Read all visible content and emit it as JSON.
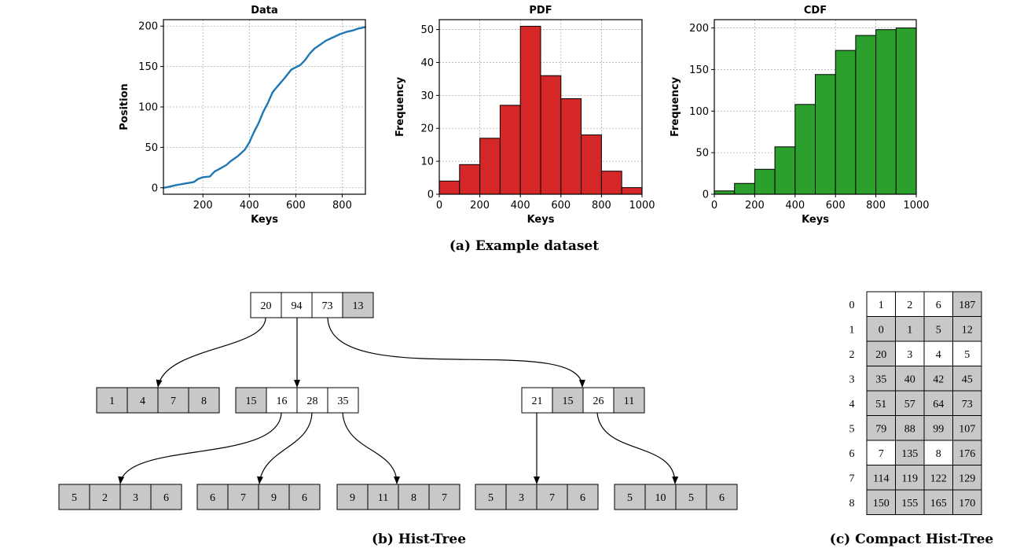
{
  "colors": {
    "line": "#1f77b4",
    "pdf_bar": "#d62728",
    "cdf_bar": "#2ca02c",
    "cell_shaded": "#c8c8c8",
    "cell_plain": "#ffffff"
  },
  "chart_data": [
    {
      "type": "line",
      "title": "Data",
      "xlabel": "Keys",
      "ylabel": "Position",
      "xlim": [
        30,
        900
      ],
      "ylim": [
        -8,
        208
      ],
      "xticks": [
        200,
        400,
        600,
        800
      ],
      "yticks": [
        0,
        50,
        100,
        150,
        200
      ],
      "grid": true,
      "x": [
        30,
        50,
        80,
        120,
        160,
        180,
        200,
        230,
        250,
        270,
        300,
        320,
        350,
        380,
        400,
        420,
        440,
        460,
        480,
        500,
        520,
        550,
        580,
        600,
        620,
        640,
        660,
        680,
        700,
        730,
        760,
        790,
        820,
        850,
        870,
        900
      ],
      "y": [
        0,
        1,
        3,
        5,
        7,
        11,
        13,
        14,
        20,
        23,
        28,
        33,
        39,
        47,
        56,
        69,
        80,
        94,
        105,
        118,
        125,
        135,
        146,
        149,
        152,
        158,
        166,
        172,
        176,
        182,
        186,
        190,
        193,
        195,
        197,
        199
      ]
    },
    {
      "type": "bar",
      "title": "PDF",
      "xlabel": "Keys",
      "ylabel": "Frequency",
      "xlim": [
        0,
        1000
      ],
      "ylim": [
        0,
        53
      ],
      "xticks": [
        0,
        200,
        400,
        600,
        800,
        1000
      ],
      "yticks": [
        0,
        10,
        20,
        30,
        40,
        50
      ],
      "grid": true,
      "bin_edges": [
        0,
        100,
        200,
        300,
        400,
        500,
        600,
        700,
        800,
        900,
        1000
      ],
      "values": [
        4,
        9,
        17,
        27,
        51,
        36,
        29,
        18,
        7,
        2
      ]
    },
    {
      "type": "bar",
      "title": "CDF",
      "xlabel": "Keys",
      "ylabel": "Frequency",
      "xlim": [
        0,
        1000
      ],
      "ylim": [
        0,
        210
      ],
      "xticks": [
        0,
        200,
        400,
        600,
        800,
        1000
      ],
      "yticks": [
        0,
        50,
        100,
        150,
        200
      ],
      "grid": true,
      "bin_edges": [
        0,
        100,
        200,
        300,
        400,
        500,
        600,
        700,
        800,
        900,
        1000
      ],
      "values": [
        4,
        13,
        30,
        57,
        108,
        144,
        173,
        191,
        198,
        200
      ]
    }
  ],
  "captions": {
    "a": "(a) Example dataset",
    "b": "(b) Hist-Tree",
    "c": "(c) Compact Hist-Tree"
  },
  "hist_tree": {
    "root": [
      {
        "v": "20",
        "s": false
      },
      {
        "v": "94",
        "s": false
      },
      {
        "v": "73",
        "s": false
      },
      {
        "v": "13",
        "s": true
      }
    ],
    "level1": [
      [
        {
          "v": "1",
          "s": true
        },
        {
          "v": "4",
          "s": true
        },
        {
          "v": "7",
          "s": true
        },
        {
          "v": "8",
          "s": true
        }
      ],
      [
        {
          "v": "15",
          "s": true
        },
        {
          "v": "16",
          "s": false
        },
        {
          "v": "28",
          "s": false
        },
        {
          "v": "35",
          "s": false
        }
      ],
      [
        {
          "v": "21",
          "s": false
        },
        {
          "v": "15",
          "s": true
        },
        {
          "v": "26",
          "s": false
        },
        {
          "v": "11",
          "s": true
        }
      ]
    ],
    "level2": [
      [
        {
          "v": "5",
          "s": true
        },
        {
          "v": "2",
          "s": true
        },
        {
          "v": "3",
          "s": true
        },
        {
          "v": "6",
          "s": true
        }
      ],
      [
        {
          "v": "6",
          "s": true
        },
        {
          "v": "7",
          "s": true
        },
        {
          "v": "9",
          "s": true
        },
        {
          "v": "6",
          "s": true
        }
      ],
      [
        {
          "v": "9",
          "s": true
        },
        {
          "v": "11",
          "s": true
        },
        {
          "v": "8",
          "s": true
        },
        {
          "v": "7",
          "s": true
        }
      ],
      [
        {
          "v": "5",
          "s": true
        },
        {
          "v": "3",
          "s": true
        },
        {
          "v": "7",
          "s": true
        },
        {
          "v": "6",
          "s": true
        }
      ],
      [
        {
          "v": "5",
          "s": true
        },
        {
          "v": "10",
          "s": true
        },
        {
          "v": "5",
          "s": true
        },
        {
          "v": "6",
          "s": true
        }
      ]
    ]
  },
  "compact_hist_tree": {
    "row_labels": [
      "0",
      "1",
      "2",
      "3",
      "4",
      "5",
      "6",
      "7",
      "8"
    ],
    "rows": [
      [
        {
          "v": "1",
          "s": false
        },
        {
          "v": "2",
          "s": false
        },
        {
          "v": "6",
          "s": false
        },
        {
          "v": "187",
          "s": true
        }
      ],
      [
        {
          "v": "0",
          "s": true
        },
        {
          "v": "1",
          "s": true
        },
        {
          "v": "5",
          "s": true
        },
        {
          "v": "12",
          "s": true
        }
      ],
      [
        {
          "v": "20",
          "s": true
        },
        {
          "v": "3",
          "s": false
        },
        {
          "v": "4",
          "s": false
        },
        {
          "v": "5",
          "s": false
        }
      ],
      [
        {
          "v": "35",
          "s": true
        },
        {
          "v": "40",
          "s": true
        },
        {
          "v": "42",
          "s": true
        },
        {
          "v": "45",
          "s": true
        }
      ],
      [
        {
          "v": "51",
          "s": true
        },
        {
          "v": "57",
          "s": true
        },
        {
          "v": "64",
          "s": true
        },
        {
          "v": "73",
          "s": true
        }
      ],
      [
        {
          "v": "79",
          "s": true
        },
        {
          "v": "88",
          "s": true
        },
        {
          "v": "99",
          "s": true
        },
        {
          "v": "107",
          "s": true
        }
      ],
      [
        {
          "v": "7",
          "s": false
        },
        {
          "v": "135",
          "s": true
        },
        {
          "v": "8",
          "s": false
        },
        {
          "v": "176",
          "s": true
        }
      ],
      [
        {
          "v": "114",
          "s": true
        },
        {
          "v": "119",
          "s": true
        },
        {
          "v": "122",
          "s": true
        },
        {
          "v": "129",
          "s": true
        }
      ],
      [
        {
          "v": "150",
          "s": true
        },
        {
          "v": "155",
          "s": true
        },
        {
          "v": "165",
          "s": true
        },
        {
          "v": "170",
          "s": true
        }
      ]
    ]
  }
}
